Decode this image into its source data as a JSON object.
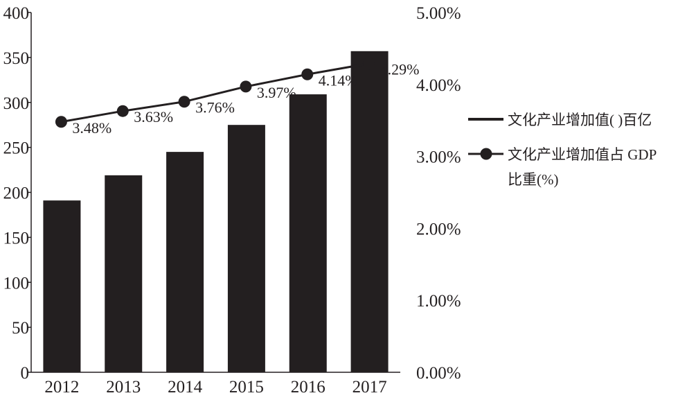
{
  "chart_data": {
    "type": "bar+line",
    "categories": [
      "2012",
      "2013",
      "2014",
      "2015",
      "2016",
      "2017"
    ],
    "series": [
      {
        "name": "文化产业增加值( )百亿",
        "type": "bar",
        "axis": "left",
        "values": [
          191,
          219,
          245,
          275,
          309,
          357
        ]
      },
      {
        "name": "文化产业增加值占GDP比重(%)",
        "type": "line",
        "axis": "right",
        "values": [
          3.48,
          3.63,
          3.76,
          3.97,
          4.14,
          4.29
        ],
        "labels": [
          "3.48%",
          "3.63%",
          "3.76%",
          "3.97%",
          "4.14%",
          "4.29%"
        ]
      }
    ],
    "y_left": {
      "min": 0,
      "max": 400,
      "ticks": [
        "0",
        "50",
        "100",
        "150",
        "200",
        "250",
        "300",
        "350",
        "400"
      ]
    },
    "y_right": {
      "min": 0,
      "max": 5,
      "ticks": [
        "0.00%",
        "1.00%",
        "2.00%",
        "3.00%",
        "4.00%",
        "5.00%"
      ]
    },
    "grid": false,
    "legend": {
      "position": "right",
      "entries": [
        {
          "lines": [
            "文化产业增加值( )百亿"
          ],
          "marker": "line"
        },
        {
          "lines": [
            "文化产业增加值占 GDP",
            "比重(%)"
          ],
          "marker": "line-dot"
        }
      ]
    },
    "colors": {
      "bar": "#231f20",
      "line": "#231f20",
      "text": "#231f20"
    }
  }
}
